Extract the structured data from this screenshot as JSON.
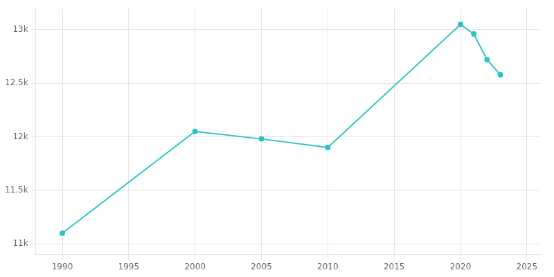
{
  "chart_data": {
    "type": "line",
    "x": [
      1990,
      2000,
      2005,
      2010,
      2020,
      2021,
      2022,
      2023
    ],
    "values": [
      11100,
      12050,
      11980,
      11900,
      13050,
      12960,
      12720,
      12580
    ],
    "color": "#2EC4C4",
    "marker": "circle",
    "xlim": [
      1988,
      2026
    ],
    "ylim": [
      10900,
      13200
    ],
    "xticks": [
      1990,
      1995,
      2000,
      2005,
      2010,
      2015,
      2020,
      2025
    ],
    "yticks": [
      {
        "value": 11000,
        "label": "11k"
      },
      {
        "value": 11500,
        "label": "11.5k"
      },
      {
        "value": 12000,
        "label": "12k"
      },
      {
        "value": 12500,
        "label": "12.5k"
      },
      {
        "value": 13000,
        "label": "13k"
      }
    ],
    "grid": true
  }
}
